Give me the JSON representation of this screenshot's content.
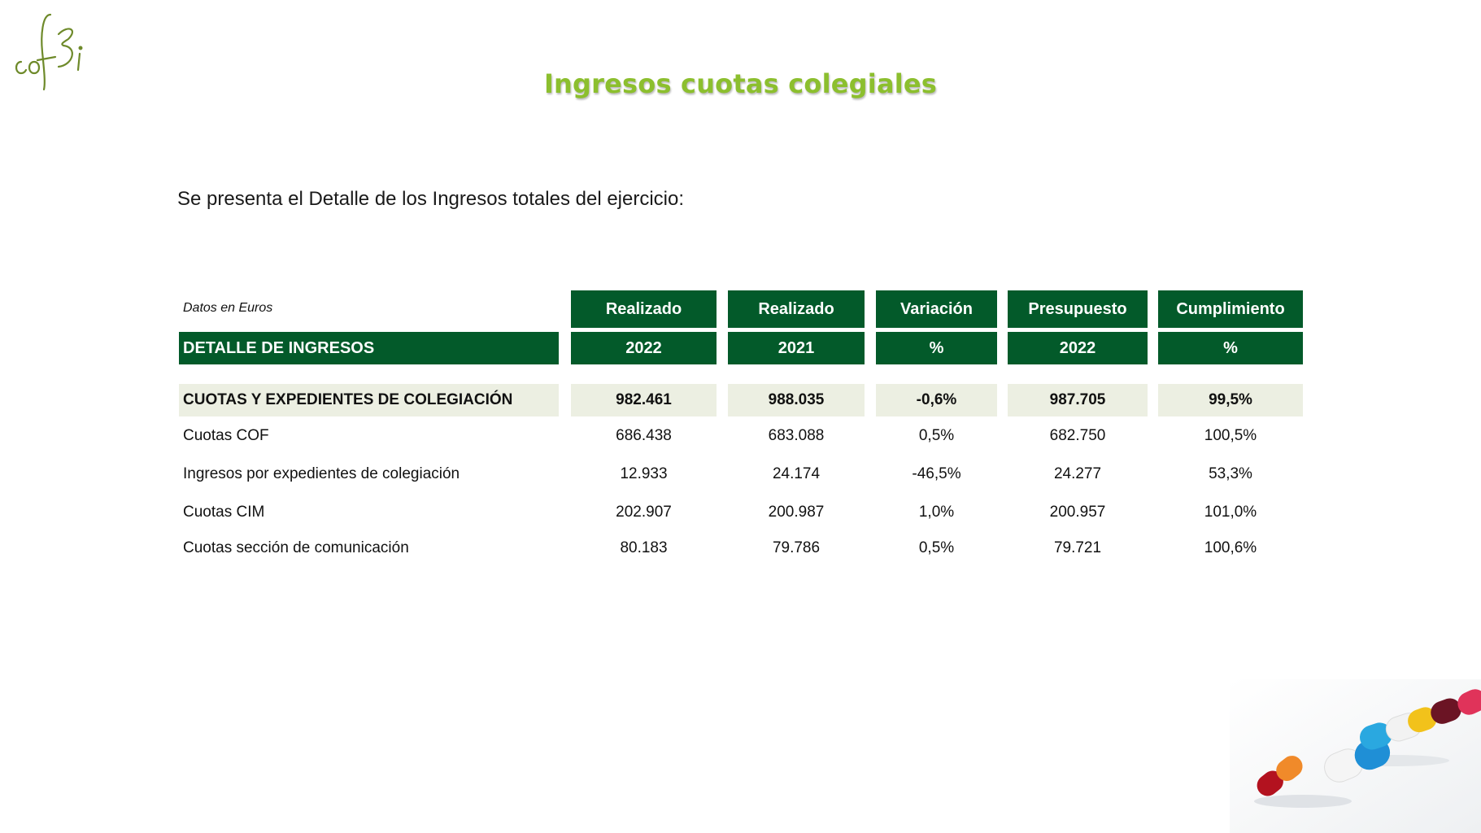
{
  "logo": {
    "text": "cofbi",
    "color": "#6e8a2a"
  },
  "title": "Ingresos cuotas colegiales",
  "intro": "Se presenta el Detalle de los Ingresos totales del ejercicio:",
  "table": {
    "note": "Datos en Euros",
    "section_label": "DETALLE DE INGRESOS",
    "columns": [
      {
        "h1": "Realizado",
        "h2": "2022"
      },
      {
        "h1": "Realizado",
        "h2": "2021"
      },
      {
        "h1": "Variación",
        "h2": "%"
      },
      {
        "h1": "Presupuesto",
        "h2": "2022"
      },
      {
        "h1": "Cumplimiento",
        "h2": "%"
      }
    ],
    "subtotal": {
      "label": "CUOTAS Y EXPEDIENTES DE COLEGIACIÓN",
      "values": [
        "982.461",
        "988.035",
        "-0,6%",
        "987.705",
        "99,5%"
      ]
    },
    "rows": [
      {
        "label": "Cuotas COF",
        "values": [
          "686.438",
          "683.088",
          "0,5%",
          "682.750",
          "100,5%"
        ]
      },
      {
        "label": "Ingresos por expedientes de colegiación",
        "values": [
          "12.933",
          "24.174",
          "-46,5%",
          "24.277",
          "53,3%"
        ]
      },
      {
        "label": "Cuotas CIM",
        "values": [
          "202.907",
          "200.987",
          "1,0%",
          "200.957",
          "101,0%"
        ]
      },
      {
        "label": "Cuotas sección de comunicación",
        "values": [
          "80.183",
          "79.786",
          "0,5%",
          "79.721",
          "100,6%"
        ]
      }
    ]
  },
  "colors": {
    "header_green": "#035a2a",
    "title_green": "#8cbf2e",
    "subtotal_bg": "#ecefe2"
  }
}
